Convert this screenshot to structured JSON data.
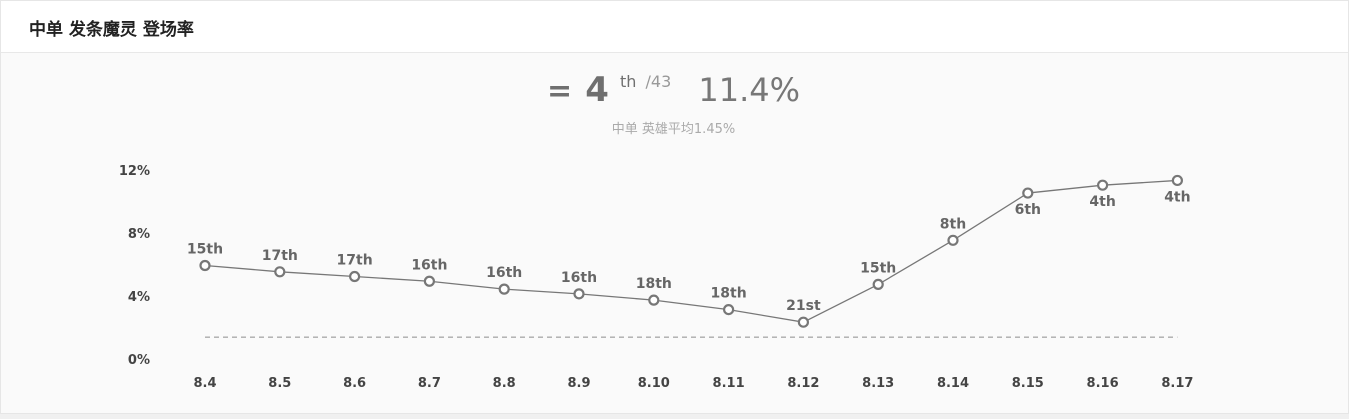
{
  "title": "中单 发条魔灵 登场率",
  "rank": {
    "symbol": "=",
    "position": "4",
    "suffix": "th",
    "total": "/43",
    "rate": "11.4%",
    "average_label": "中单 英雄平均1.45%"
  },
  "chart_data": {
    "type": "line",
    "categories": [
      "8.4",
      "8.5",
      "8.6",
      "8.7",
      "8.8",
      "8.9",
      "8.10",
      "8.11",
      "8.12",
      "8.13",
      "8.14",
      "8.15",
      "8.16",
      "8.17"
    ],
    "values": [
      6.0,
      5.6,
      5.3,
      5.0,
      4.5,
      4.2,
      3.8,
      3.2,
      2.4,
      4.8,
      7.6,
      10.6,
      11.1,
      11.4
    ],
    "point_labels": [
      "15th",
      "17th",
      "17th",
      "16th",
      "16th",
      "16th",
      "18th",
      "18th",
      "21st",
      "15th",
      "8th",
      "6th",
      "4th",
      "4th"
    ],
    "point_label_below": [
      false,
      false,
      false,
      false,
      false,
      false,
      false,
      false,
      false,
      false,
      false,
      true,
      true,
      true
    ],
    "yticks": [
      "0%",
      "4%",
      "8%",
      "12%"
    ],
    "ytick_values": [
      0,
      4,
      8,
      12
    ],
    "ylim": [
      0,
      12
    ],
    "average": 1.45,
    "line_color": "#777777",
    "average_color": "#aaaaaa"
  }
}
